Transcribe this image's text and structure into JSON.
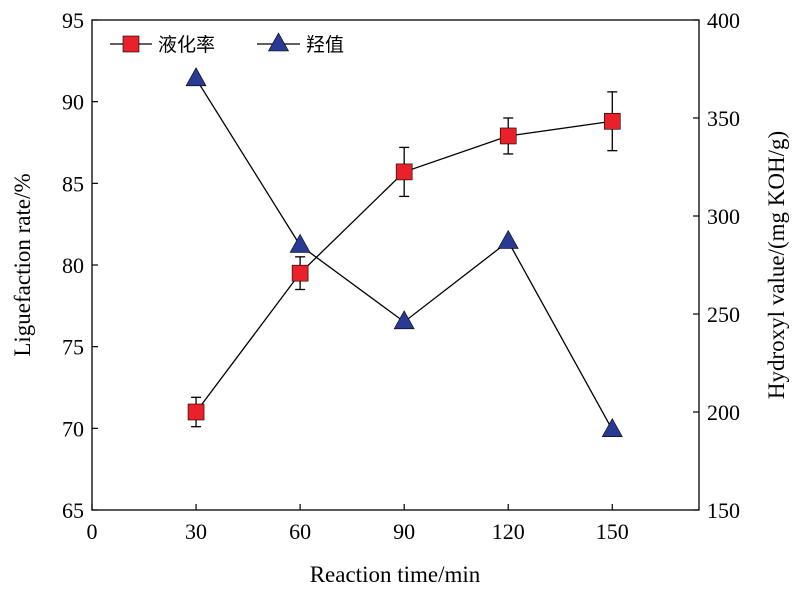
{
  "chart_data": {
    "type": "line",
    "x": [
      30,
      60,
      90,
      120,
      150
    ],
    "xlabel": "Reaction time/min",
    "xlim": [
      0,
      175
    ],
    "xticks": [
      "0",
      "30",
      "60",
      "90",
      "120",
      "150"
    ],
    "ylabel_left": "Liguefaction rate/%",
    "ylim_left": [
      65,
      95
    ],
    "yticks_left": [
      "65",
      "70",
      "75",
      "80",
      "85",
      "90",
      "95"
    ],
    "ylabel_right": "Hydroxyl value/(mg KOH/g)",
    "ylim_right": [
      150,
      400
    ],
    "yticks_right": [
      "150",
      "200",
      "250",
      "300",
      "350",
      "400"
    ],
    "grid": false,
    "legend_position": "top-left",
    "series": [
      {
        "name": "液化率",
        "axis": "left",
        "marker": "square",
        "color": "#e8212a",
        "values": [
          71.0,
          79.5,
          85.7,
          87.9,
          88.8
        ],
        "errors": [
          0.9,
          1.0,
          1.5,
          1.1,
          1.8
        ]
      },
      {
        "name": "羟值",
        "axis": "right",
        "marker": "triangle",
        "color": "#283a93",
        "values": [
          370,
          285,
          246,
          287,
          191
        ]
      }
    ]
  }
}
